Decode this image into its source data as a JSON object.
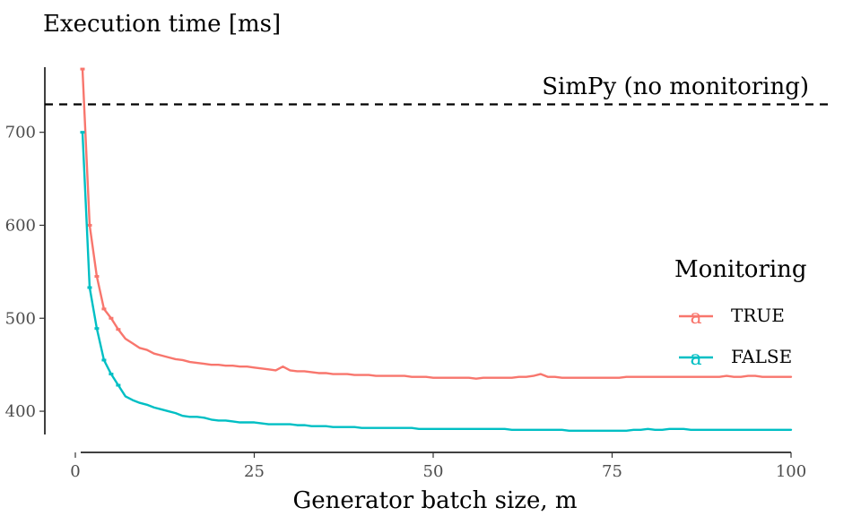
{
  "chart_data": {
    "type": "line",
    "title": "Execution time [ms]",
    "xlabel": "Generator batch size, m",
    "ylabel": "",
    "xlim": [
      0,
      100
    ],
    "ylim": [
      375,
      770
    ],
    "x_ticks": [
      0,
      25,
      50,
      75,
      100
    ],
    "y_ticks": [
      400,
      500,
      600,
      700
    ],
    "x_tick_labels": [
      "0",
      "25",
      "50",
      "75",
      "100"
    ],
    "y_tick_labels": [
      "400",
      "500",
      "600",
      "700"
    ],
    "grid": false,
    "reference_line": {
      "label": "SimPy (no monitoring)",
      "y": 730,
      "style": "dashed",
      "color": "#000000"
    },
    "legend": {
      "title": "Monitoring",
      "position": "right",
      "key_glyph": "a"
    },
    "x": [
      1,
      2,
      3,
      4,
      5,
      6,
      7,
      8,
      9,
      10,
      11,
      12,
      13,
      14,
      15,
      16,
      17,
      18,
      19,
      20,
      21,
      22,
      23,
      24,
      25,
      26,
      27,
      28,
      29,
      30,
      31,
      32,
      33,
      34,
      35,
      36,
      37,
      38,
      39,
      40,
      41,
      42,
      43,
      44,
      45,
      46,
      47,
      48,
      49,
      50,
      51,
      52,
      53,
      54,
      55,
      56,
      57,
      58,
      59,
      60,
      61,
      62,
      63,
      64,
      65,
      66,
      67,
      68,
      69,
      70,
      71,
      72,
      73,
      74,
      75,
      76,
      77,
      78,
      79,
      80,
      81,
      82,
      83,
      84,
      85,
      86,
      87,
      88,
      89,
      90,
      91,
      92,
      93,
      94,
      95,
      96,
      97,
      98,
      99,
      100
    ],
    "series": [
      {
        "name": "TRUE",
        "color": "#f8766d",
        "values": [
          768,
          600,
          545,
          510,
          500,
          488,
          478,
          473,
          468,
          466,
          462,
          460,
          458,
          456,
          455,
          453,
          452,
          451,
          450,
          450,
          449,
          449,
          448,
          448,
          447,
          446,
          445,
          444,
          448,
          444,
          443,
          443,
          442,
          441,
          441,
          440,
          440,
          440,
          439,
          439,
          439,
          438,
          438,
          438,
          438,
          438,
          437,
          437,
          437,
          436,
          436,
          436,
          436,
          436,
          436,
          435,
          436,
          436,
          436,
          436,
          436,
          437,
          437,
          438,
          440,
          437,
          437,
          436,
          436,
          436,
          436,
          436,
          436,
          436,
          436,
          436,
          437,
          437,
          437,
          437,
          437,
          437,
          437,
          437,
          437,
          437,
          437,
          437,
          437,
          437,
          438,
          437,
          437,
          438,
          438,
          437,
          437,
          437,
          437,
          437
        ]
      },
      {
        "name": "FALSE",
        "color": "#00bfc4",
        "values": [
          700,
          533,
          489,
          455,
          440,
          428,
          416,
          412,
          409,
          407,
          404,
          402,
          400,
          398,
          395,
          394,
          394,
          393,
          391,
          390,
          390,
          389,
          388,
          388,
          388,
          387,
          386,
          386,
          386,
          386,
          385,
          385,
          384,
          384,
          384,
          383,
          383,
          383,
          383,
          382,
          382,
          382,
          382,
          382,
          382,
          382,
          382,
          381,
          381,
          381,
          381,
          381,
          381,
          381,
          381,
          381,
          381,
          381,
          381,
          381,
          380,
          380,
          380,
          380,
          380,
          380,
          380,
          380,
          379,
          379,
          379,
          379,
          379,
          379,
          379,
          379,
          379,
          380,
          380,
          381,
          380,
          380,
          381,
          381,
          381,
          380,
          380,
          380,
          380,
          380,
          380,
          380,
          380,
          380,
          380,
          380,
          380,
          380,
          380,
          380
        ]
      }
    ]
  }
}
